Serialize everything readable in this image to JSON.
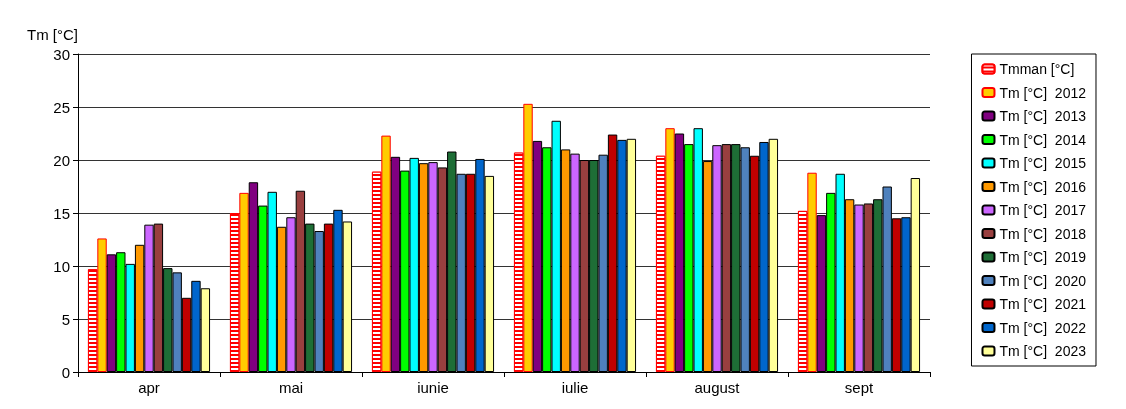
{
  "chart_data": {
    "type": "bar",
    "ylabel": "Tm [°C]",
    "categories": [
      "apr",
      "mai",
      "iunie",
      "iulie",
      "august",
      "sept"
    ],
    "ylim": [
      0,
      30
    ],
    "yticks": [
      0,
      5,
      10,
      15,
      20,
      25,
      30
    ],
    "grid": "y",
    "legend": "right",
    "series": [
      {
        "name": "Tmman [°C]",
        "color": "#ff0000",
        "values": [
          9.7,
          15.0,
          18.9,
          20.7,
          20.4,
          15.2
        ]
      },
      {
        "name": "Tm [°C]  2012",
        "color": "#ffcc00",
        "values": [
          12.6,
          16.9,
          22.3,
          25.3,
          23.0,
          18.8
        ]
      },
      {
        "name": "Tm [°C]  2013",
        "color": "#800080",
        "values": [
          11.1,
          17.9,
          20.3,
          21.8,
          22.5,
          14.8
        ]
      },
      {
        "name": "Tm [°C]  2014",
        "color": "#00ff00",
        "values": [
          11.3,
          15.7,
          19.0,
          21.2,
          21.5,
          16.9
        ]
      },
      {
        "name": "Tm [°C]  2015",
        "color": "#00ffff",
        "values": [
          10.2,
          17.0,
          20.2,
          23.7,
          23.0,
          18.7
        ]
      },
      {
        "name": "Tm [°C]  2016",
        "color": "#ff9900",
        "values": [
          12.0,
          13.7,
          19.7,
          21.0,
          19.9,
          16.3
        ]
      },
      {
        "name": "Tm [°C]  2017",
        "color": "#cc66ff",
        "values": [
          13.9,
          14.6,
          19.8,
          20.6,
          21.4,
          15.8
        ]
      },
      {
        "name": "Tm [°C]  2018",
        "color": "#993f3f",
        "values": [
          14.0,
          17.1,
          19.3,
          20.0,
          21.5,
          15.9
        ]
      },
      {
        "name": "Tm [°C]  2019",
        "color": "#1e6e36",
        "values": [
          9.8,
          14.0,
          20.8,
          20.0,
          21.5,
          16.3
        ]
      },
      {
        "name": "Tm [°C]  2020",
        "color": "#4f81bd",
        "values": [
          9.4,
          13.3,
          18.7,
          20.5,
          21.2,
          17.5
        ]
      },
      {
        "name": "Tm [°C]  2021",
        "color": "#c00000",
        "values": [
          7.0,
          14.0,
          18.7,
          22.4,
          20.4,
          14.5
        ]
      },
      {
        "name": "Tm [°C]  2022",
        "color": "#0066cc",
        "values": [
          8.6,
          15.3,
          20.1,
          21.9,
          21.7,
          14.6
        ]
      },
      {
        "name": "Tm [°C]  2023",
        "color": "#ffff99",
        "values": [
          7.9,
          14.2,
          18.5,
          22.0,
          22.0,
          18.3
        ]
      }
    ]
  }
}
